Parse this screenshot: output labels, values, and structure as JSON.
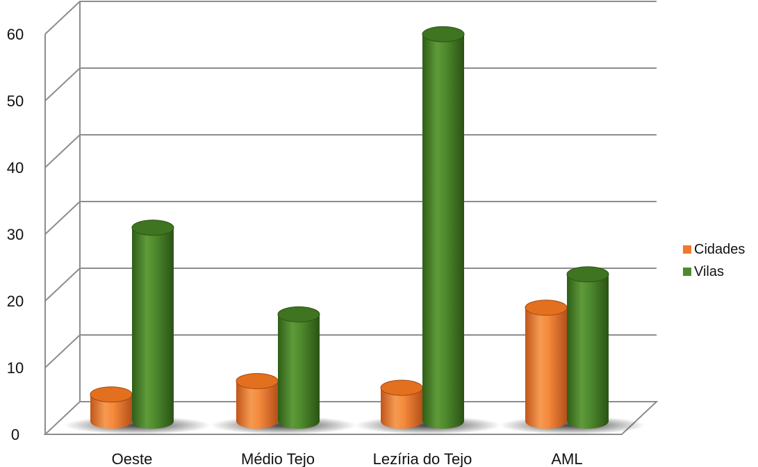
{
  "chart_data": {
    "type": "bar",
    "style": "3d-cylinder",
    "categories": [
      "Oeste",
      "Médio Tejo",
      "Lezíria do Tejo",
      "AML"
    ],
    "series": [
      {
        "name": "Cidades",
        "values": [
          4,
          6,
          5,
          17
        ],
        "color": "#f07a2a"
      },
      {
        "name": "Vilas",
        "values": [
          29,
          16,
          58,
          22
        ],
        "color": "#4e8a2c"
      }
    ],
    "yticks": [
      "0",
      "10",
      "20",
      "30",
      "40",
      "50",
      "60"
    ],
    "ylim": [
      0,
      60
    ],
    "grid": true,
    "legend": "right"
  }
}
